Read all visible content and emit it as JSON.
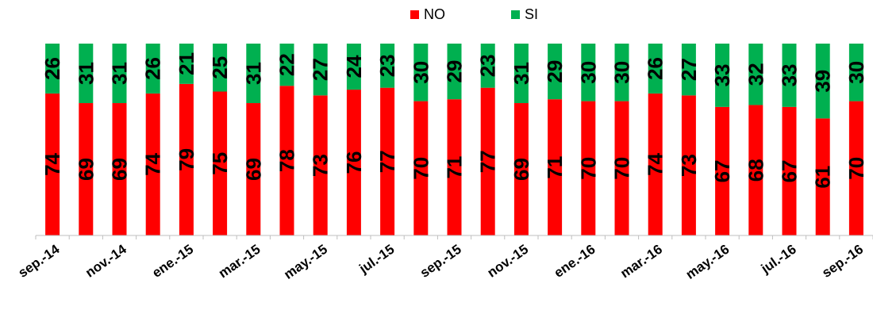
{
  "chart_data": {
    "type": "bar",
    "stacked": true,
    "orientation": "vertical",
    "legend_position": "top",
    "grid": false,
    "ylim": [
      0,
      100
    ],
    "categories": [
      "sep.-14",
      "oct.-14",
      "nov.-14",
      "dic.-14",
      "ene.-15",
      "feb.-15",
      "mar.-15",
      "abr.-15",
      "may.-15",
      "jun.-15",
      "jul.-15",
      "ago.-15",
      "sep.-15",
      "oct.-15",
      "nov.-15",
      "dic.-15",
      "ene.-16",
      "feb.-16",
      "mar.-16",
      "abr.-16",
      "may.-16",
      "jun.-16",
      "jul.-16",
      "ago.-16",
      "sep.-16"
    ],
    "tick_labels": [
      "sep.-14",
      "nov.-14",
      "ene.-15",
      "mar.-15",
      "may.-15",
      "jul.-15",
      "sep.-15",
      "nov.-15",
      "ene.-16",
      "mar.-16",
      "may.-16",
      "jul.-16",
      "sep.-16"
    ],
    "series": [
      {
        "name": "NO",
        "color": "#ff0000",
        "values": [
          74,
          69,
          69,
          74,
          79,
          75,
          69,
          78,
          73,
          76,
          77,
          70,
          71,
          77,
          69,
          71,
          70,
          70,
          74,
          73,
          67,
          68,
          67,
          61,
          70
        ]
      },
      {
        "name": "SI",
        "color": "#00b050",
        "values": [
          26,
          31,
          31,
          26,
          21,
          25,
          31,
          22,
          27,
          24,
          23,
          30,
          29,
          23,
          31,
          29,
          30,
          30,
          26,
          27,
          33,
          32,
          33,
          39,
          30
        ]
      }
    ]
  }
}
